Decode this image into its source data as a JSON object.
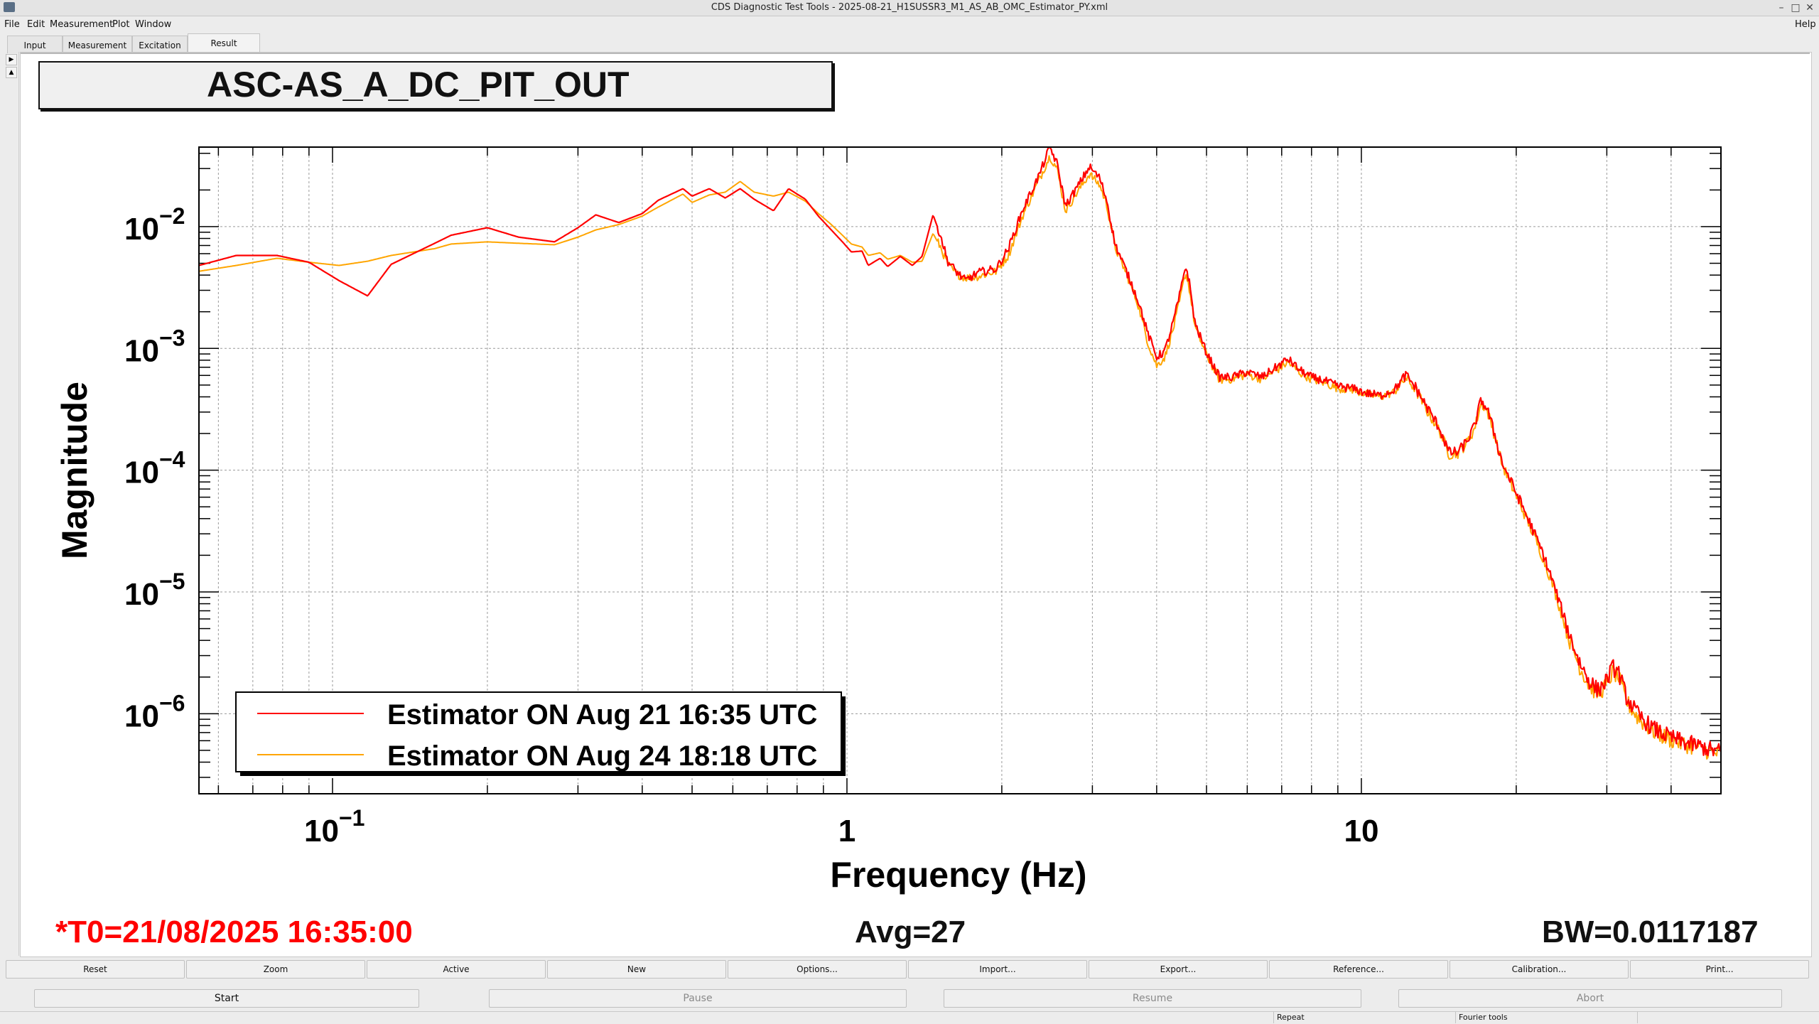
{
  "window": {
    "title": "CDS Diagnostic Test Tools - 2025-08-21_H1SUSSR3_M1_AS_AB_OMC_Estimator_PY.xml"
  },
  "menu": {
    "file": "File",
    "edit": "Edit",
    "measurement": "Measurement",
    "plot": "Plot",
    "window": "Window",
    "help": "Help"
  },
  "tabs": {
    "input": "Input",
    "measurement": "Measurement",
    "excitation": "Excitation",
    "result": "Result"
  },
  "plot": {
    "title": "ASC-AS_A_DC_PIT_OUT"
  },
  "chart_data": {
    "type": "line",
    "title": "ASC-AS_A_DC_PIT_OUT",
    "xlabel": "Frequency (Hz)",
    "ylabel": "Magnitude",
    "xscale": "log",
    "yscale": "log",
    "xlim": [
      0.055,
      50
    ],
    "ylim": [
      2.2e-07,
      0.045
    ],
    "x_ticks": [
      {
        "value": 0.1,
        "base": "10",
        "exp": "−1"
      },
      {
        "value": 1,
        "base": "1",
        "exp": ""
      },
      {
        "value": 10,
        "base": "10",
        "exp": ""
      }
    ],
    "y_ticks": [
      {
        "value": 0.01,
        "base": "10",
        "exp": "−2"
      },
      {
        "value": 0.001,
        "base": "10",
        "exp": "−3"
      },
      {
        "value": 0.0001,
        "base": "10",
        "exp": "−4"
      },
      {
        "value": 1e-05,
        "base": "10",
        "exp": "−5"
      },
      {
        "value": 1e-06,
        "base": "10",
        "exp": "−6"
      }
    ],
    "grid": true,
    "legend": "bottom-left",
    "series": [
      {
        "name": "Estimator ON Aug 21 16:35 UTC",
        "color": "#ff0000",
        "points": [
          [
            0.055,
            0.0048
          ],
          [
            0.065,
            0.0058
          ],
          [
            0.078,
            0.0058
          ],
          [
            0.09,
            0.0051
          ],
          [
            0.103,
            0.0036
          ],
          [
            0.117,
            0.0027
          ],
          [
            0.13,
            0.0049
          ],
          [
            0.158,
            0.0073
          ],
          [
            0.17,
            0.0085
          ],
          [
            0.2,
            0.0098
          ],
          [
            0.23,
            0.0082
          ],
          [
            0.27,
            0.0075
          ],
          [
            0.3,
            0.0098
          ],
          [
            0.325,
            0.0125
          ],
          [
            0.36,
            0.0108
          ],
          [
            0.4,
            0.0128
          ],
          [
            0.43,
            0.0165
          ],
          [
            0.48,
            0.0205
          ],
          [
            0.5,
            0.0178
          ],
          [
            0.54,
            0.0205
          ],
          [
            0.58,
            0.0172
          ],
          [
            0.62,
            0.0205
          ],
          [
            0.66,
            0.0168
          ],
          [
            0.72,
            0.0135
          ],
          [
            0.77,
            0.0205
          ],
          [
            0.83,
            0.0168
          ],
          [
            0.88,
            0.0122
          ],
          [
            0.93,
            0.0095
          ],
          [
            0.98,
            0.0075
          ],
          [
            1.02,
            0.0062
          ],
          [
            1.07,
            0.0063
          ],
          [
            1.1,
            0.0048
          ],
          [
            1.16,
            0.0055
          ],
          [
            1.2,
            0.0047
          ],
          [
            1.27,
            0.0057
          ],
          [
            1.34,
            0.0048
          ],
          [
            1.4,
            0.0057
          ],
          [
            1.47,
            0.0125
          ],
          [
            1.52,
            0.0085
          ],
          [
            1.57,
            0.0052
          ],
          [
            1.63,
            0.0043
          ],
          [
            1.7,
            0.0036
          ],
          [
            1.8,
            0.0042
          ],
          [
            1.95,
            0.0045
          ],
          [
            2.06,
            0.0066
          ],
          [
            2.2,
            0.014
          ],
          [
            2.36,
            0.026
          ],
          [
            2.48,
            0.045
          ],
          [
            2.56,
            0.033
          ],
          [
            2.66,
            0.0148
          ],
          [
            2.8,
            0.0208
          ],
          [
            2.96,
            0.031
          ],
          [
            3.1,
            0.025
          ],
          [
            3.2,
            0.0165
          ],
          [
            3.32,
            0.0072
          ],
          [
            3.5,
            0.0042
          ],
          [
            3.68,
            0.0025
          ],
          [
            3.85,
            0.0013
          ],
          [
            4.0,
            0.00085
          ],
          [
            4.15,
            0.00095
          ],
          [
            4.3,
            0.0016
          ],
          [
            4.45,
            0.0029
          ],
          [
            4.55,
            0.0048
          ],
          [
            4.62,
            0.0037
          ],
          [
            4.75,
            0.0016
          ],
          [
            5.0,
            0.00092
          ],
          [
            5.3,
            0.00058
          ],
          [
            5.6,
            0.00058
          ],
          [
            6.0,
            0.00064
          ],
          [
            6.4,
            0.00058
          ],
          [
            6.8,
            0.00069
          ],
          [
            7.2,
            0.00082
          ],
          [
            7.6,
            0.00066
          ],
          [
            8.0,
            0.00058
          ],
          [
            8.5,
            0.00054
          ],
          [
            9.0,
            0.00049
          ],
          [
            9.6,
            0.00047
          ],
          [
            10.2,
            0.00043
          ],
          [
            10.9,
            0.00041
          ],
          [
            11.6,
            0.00046
          ],
          [
            12.2,
            0.0006
          ],
          [
            12.7,
            0.00049
          ],
          [
            13.4,
            0.00033
          ],
          [
            14.2,
            0.00022
          ],
          [
            14.8,
            0.00014
          ],
          [
            15.4,
            0.00014
          ],
          [
            16.0,
            0.00017
          ],
          [
            16.6,
            0.00023
          ],
          [
            17.1,
            0.00038
          ],
          [
            17.6,
            0.00031
          ],
          [
            18.2,
            0.00019
          ],
          [
            18.8,
            0.000114
          ],
          [
            19.6,
            7.8e-05
          ],
          [
            20.5,
            5.2e-05
          ],
          [
            21.5,
            3.3e-05
          ],
          [
            22.5,
            2.1e-05
          ],
          [
            23.5,
            1.25e-05
          ],
          [
            24.5,
            7.2e-06
          ],
          [
            25.5,
            4.2e-06
          ],
          [
            26.6,
            2.6e-06
          ],
          [
            27.7,
            1.88e-06
          ],
          [
            28.8,
            1.55e-06
          ],
          [
            30.0,
            1.88e-06
          ],
          [
            30.8,
            2.4e-06
          ],
          [
            31.6,
            2.2e-06
          ],
          [
            32.8,
            1.35e-06
          ],
          [
            34.5,
            9.8e-07
          ],
          [
            36.8,
            7.6e-07
          ],
          [
            39.5,
            6.5e-07
          ],
          [
            42.5,
            5.8e-07
          ],
          [
            45.5,
            5.4e-07
          ],
          [
            48.0,
            5e-07
          ],
          [
            50.0,
            4.9e-07
          ]
        ]
      },
      {
        "name": "Estimator ON Aug 24 18:18 UTC",
        "color": "#ffa500",
        "points": [
          [
            0.055,
            0.0043
          ],
          [
            0.065,
            0.0048
          ],
          [
            0.078,
            0.0055
          ],
          [
            0.09,
            0.0051
          ],
          [
            0.103,
            0.0048
          ],
          [
            0.117,
            0.0052
          ],
          [
            0.13,
            0.0058
          ],
          [
            0.158,
            0.0066
          ],
          [
            0.17,
            0.0072
          ],
          [
            0.2,
            0.0075
          ],
          [
            0.23,
            0.0073
          ],
          [
            0.27,
            0.0071
          ],
          [
            0.3,
            0.0082
          ],
          [
            0.325,
            0.0094
          ],
          [
            0.36,
            0.0104
          ],
          [
            0.4,
            0.0122
          ],
          [
            0.43,
            0.0145
          ],
          [
            0.48,
            0.0185
          ],
          [
            0.5,
            0.0158
          ],
          [
            0.54,
            0.0182
          ],
          [
            0.58,
            0.0192
          ],
          [
            0.62,
            0.0235
          ],
          [
            0.66,
            0.0192
          ],
          [
            0.72,
            0.0178
          ],
          [
            0.77,
            0.0192
          ],
          [
            0.83,
            0.0162
          ],
          [
            0.88,
            0.0128
          ],
          [
            0.93,
            0.0105
          ],
          [
            0.98,
            0.0085
          ],
          [
            1.02,
            0.0072
          ],
          [
            1.07,
            0.0068
          ],
          [
            1.1,
            0.0058
          ],
          [
            1.16,
            0.0061
          ],
          [
            1.2,
            0.0054
          ],
          [
            1.27,
            0.0058
          ],
          [
            1.34,
            0.0051
          ],
          [
            1.4,
            0.0052
          ],
          [
            1.47,
            0.0088
          ],
          [
            1.52,
            0.0068
          ],
          [
            1.57,
            0.0049
          ],
          [
            1.63,
            0.0041
          ],
          [
            1.7,
            0.0038
          ],
          [
            1.8,
            0.0039
          ],
          [
            1.95,
            0.0043
          ],
          [
            2.06,
            0.0058
          ],
          [
            2.2,
            0.0125
          ],
          [
            2.36,
            0.024
          ],
          [
            2.48,
            0.038
          ],
          [
            2.56,
            0.03
          ],
          [
            2.66,
            0.0135
          ],
          [
            2.8,
            0.019
          ],
          [
            2.96,
            0.027
          ],
          [
            3.1,
            0.022
          ],
          [
            3.2,
            0.015
          ],
          [
            3.32,
            0.0068
          ],
          [
            3.5,
            0.004
          ],
          [
            3.68,
            0.0023
          ],
          [
            3.85,
            0.0011
          ],
          [
            4.0,
            0.00072
          ],
          [
            4.15,
            0.00085
          ],
          [
            4.3,
            0.0014
          ],
          [
            4.45,
            0.0026
          ],
          [
            4.55,
            0.0042
          ],
          [
            4.62,
            0.0033
          ],
          [
            4.75,
            0.0015
          ],
          [
            5.0,
            0.00088
          ],
          [
            5.3,
            0.00055
          ],
          [
            5.6,
            0.00056
          ],
          [
            6.0,
            0.00061
          ],
          [
            6.4,
            0.00056
          ],
          [
            6.8,
            0.00065
          ],
          [
            7.2,
            0.00077
          ],
          [
            7.6,
            0.00063
          ],
          [
            8.0,
            0.00056
          ],
          [
            8.5,
            0.00052
          ],
          [
            9.0,
            0.00047
          ],
          [
            9.6,
            0.00046
          ],
          [
            10.2,
            0.00042
          ],
          [
            10.9,
            0.0004
          ],
          [
            11.6,
            0.00044
          ],
          [
            12.2,
            0.00057
          ],
          [
            12.7,
            0.00047
          ],
          [
            13.4,
            0.00031
          ],
          [
            14.2,
            0.00021
          ],
          [
            14.8,
            0.000135
          ],
          [
            15.4,
            0.000138
          ],
          [
            16.0,
            0.000165
          ],
          [
            16.6,
            0.00022
          ],
          [
            17.1,
            0.00036
          ],
          [
            17.6,
            0.0003
          ],
          [
            18.2,
            0.000185
          ],
          [
            18.8,
            0.00011
          ],
          [
            19.6,
            7.4e-05
          ],
          [
            20.5,
            4.9e-05
          ],
          [
            21.5,
            3.1e-05
          ],
          [
            22.5,
            1.95e-05
          ],
          [
            23.5,
            1.18e-05
          ],
          [
            24.5,
            6.6e-06
          ],
          [
            25.5,
            3.8e-06
          ],
          [
            26.6,
            2.4e-06
          ],
          [
            27.7,
            1.72e-06
          ],
          [
            28.8,
            1.45e-06
          ],
          [
            30.0,
            1.72e-06
          ],
          [
            30.8,
            2.2e-06
          ],
          [
            31.6,
            2e-06
          ],
          [
            32.8,
            1.25e-06
          ],
          [
            34.5,
            9.2e-07
          ],
          [
            36.8,
            7.2e-07
          ],
          [
            39.5,
            6.2e-07
          ],
          [
            42.5,
            5.6e-07
          ],
          [
            45.5,
            5.2e-07
          ],
          [
            48.0,
            4.8e-07
          ],
          [
            50.0,
            4.7e-07
          ]
        ]
      }
    ]
  },
  "footer": {
    "t0": "*T0=21/08/2025 16:35:00",
    "avg": "Avg=27",
    "bw": "BW=0.0117187"
  },
  "buttons_row1": [
    "Reset",
    "Zoom",
    "Active",
    "New",
    "Options...",
    "Import...",
    "Export...",
    "Reference...",
    "Calibration...",
    "Print..."
  ],
  "buttons_row2": {
    "start": "Start",
    "pause": "Pause",
    "resume": "Resume",
    "abort": "Abort"
  },
  "status": {
    "repeat": "Repeat",
    "fourier": "Fourier tools"
  }
}
